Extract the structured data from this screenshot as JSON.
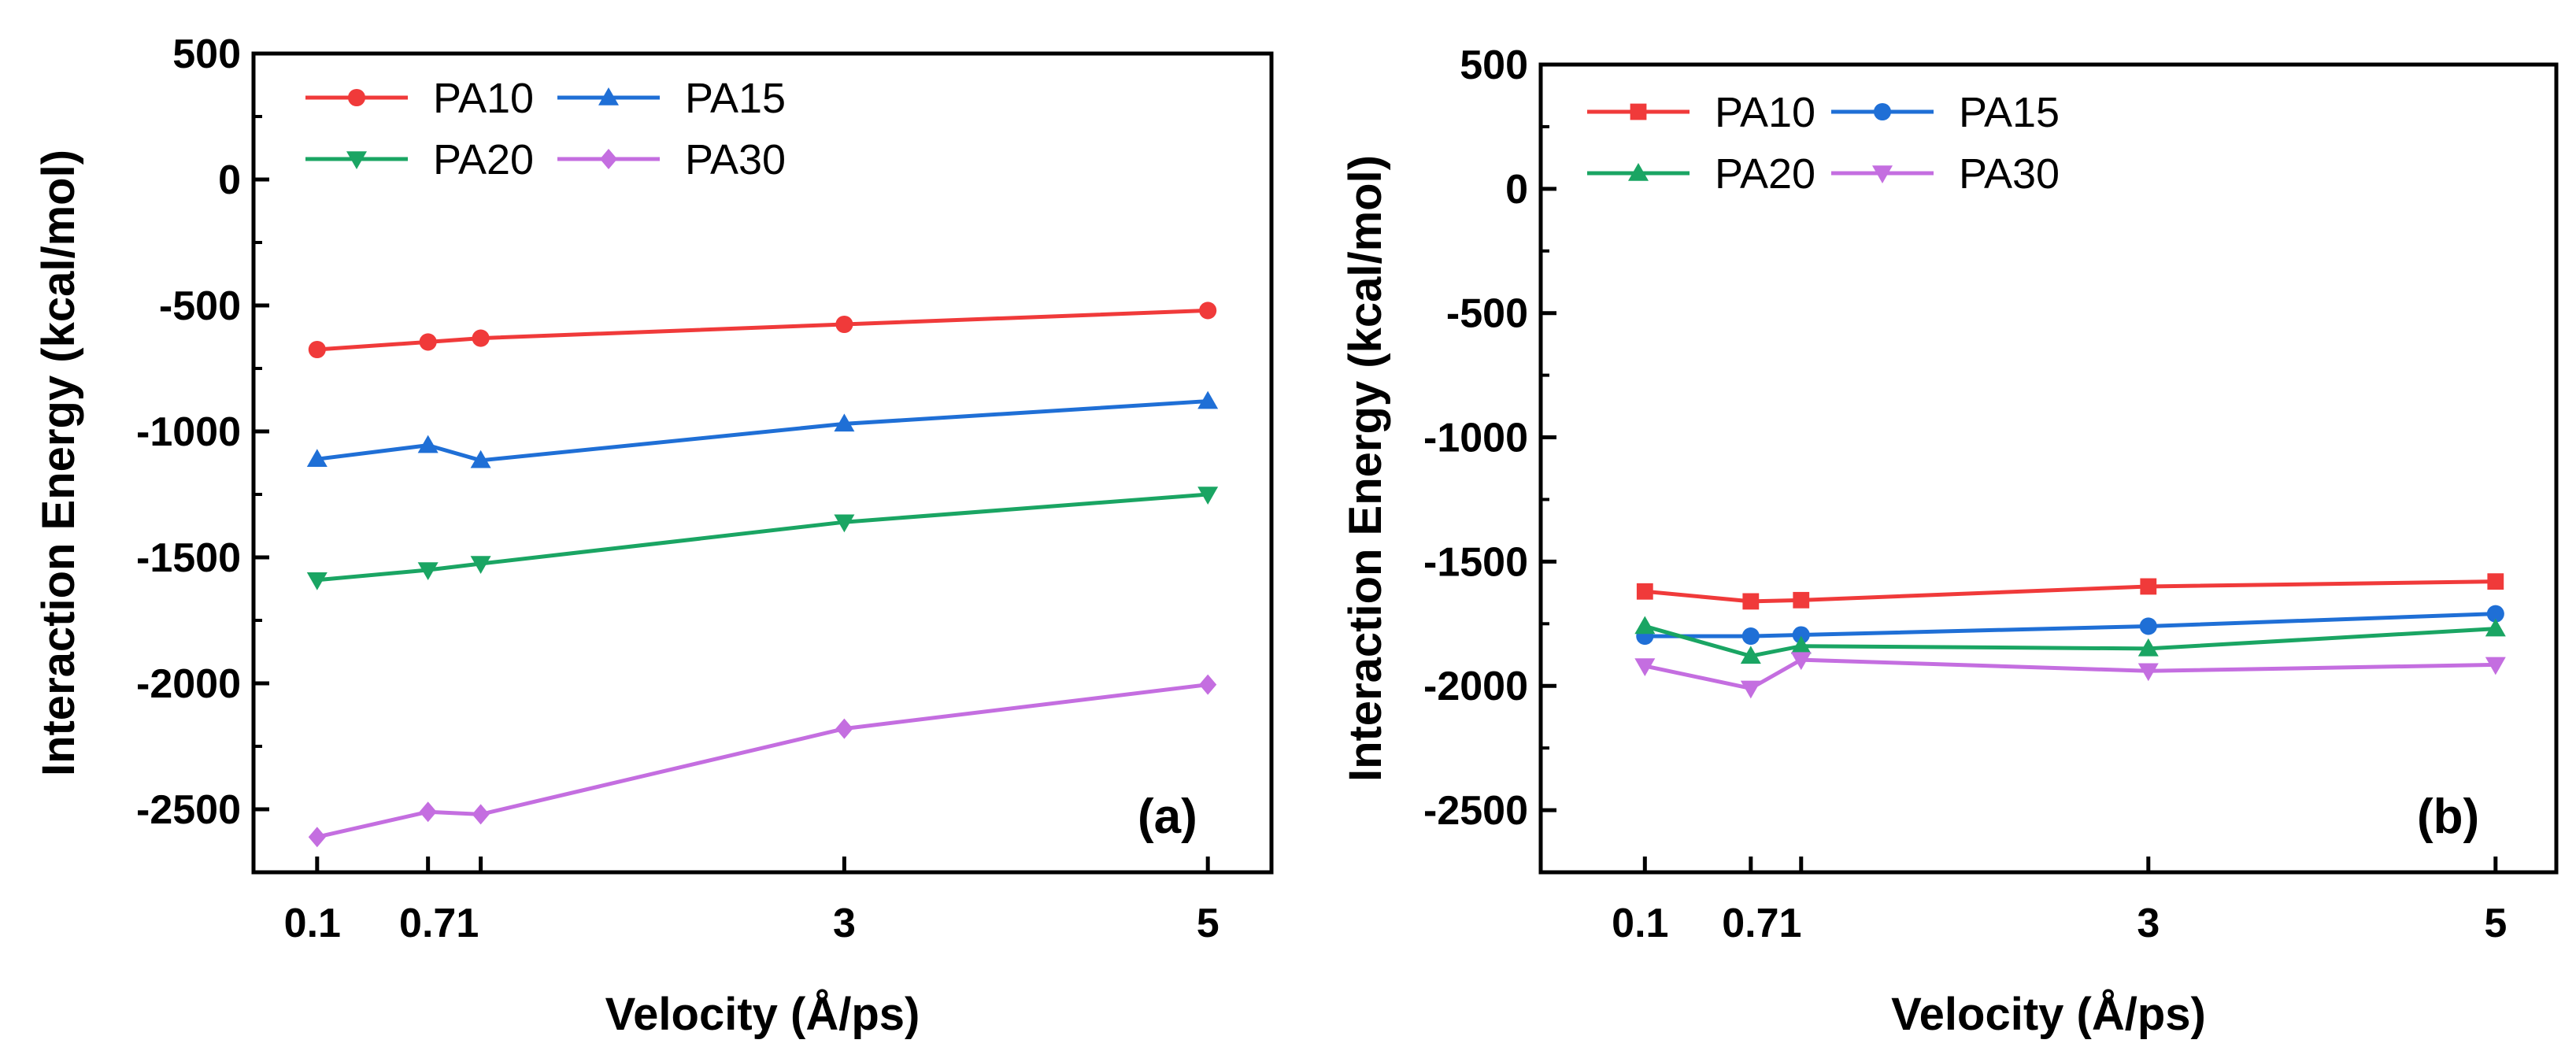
{
  "chart_data": [
    {
      "type": "line",
      "panel_label": "(a)",
      "xlabel": "Velocity (Å/ps)",
      "ylabel": "Interaction Energy (kcal/mol)",
      "xlim": [
        -0.25,
        5.35
      ],
      "ylim": [
        -2750,
        500
      ],
      "x_ticks": [
        0.1,
        0.71,
        1,
        3,
        5
      ],
      "x_tick_labels": [
        "0.1",
        "0.71",
        "",
        "3",
        "5"
      ],
      "y_ticks": [
        500,
        0,
        -500,
        -1000,
        -1500,
        -2000,
        -2500
      ],
      "y_tick_labels": [
        "500",
        "0",
        "-500",
        "-1000",
        "-1500",
        "-2000",
        "-2500"
      ],
      "legend_position": "top-left",
      "x": [
        0.1,
        0.71,
        1,
        3,
        5
      ],
      "series": [
        {
          "name": "PA10",
          "color": "#f03a3a",
          "marker": "circle",
          "values": [
            -675,
            -645,
            -630,
            -575,
            -520
          ]
        },
        {
          "name": "PA15",
          "color": "#1f6fd6",
          "marker": "triangle-up",
          "values": [
            -1110,
            -1055,
            -1115,
            -970,
            -880
          ]
        },
        {
          "name": "PA20",
          "color": "#1aa563",
          "marker": "triangle-down",
          "values": [
            -1590,
            -1550,
            -1525,
            -1360,
            -1250
          ]
        },
        {
          "name": "PA30",
          "color": "#c46ee0",
          "marker": "diamond",
          "values": [
            -2610,
            -2510,
            -2520,
            -2180,
            -2005
          ]
        }
      ]
    },
    {
      "type": "line",
      "panel_label": "(b)",
      "xlabel": "Velocity (Å/ps)",
      "ylabel": "Interaction Energy (kcal/mol)",
      "xlim": [
        -0.5,
        5.35
      ],
      "ylim": [
        -2750,
        500
      ],
      "x_ticks": [
        0.1,
        0.71,
        1,
        3,
        5
      ],
      "x_tick_labels": [
        "0.1",
        "0.71",
        "",
        "3",
        "5"
      ],
      "y_ticks": [
        500,
        0,
        -500,
        -1000,
        -1500,
        -2000,
        -2500
      ],
      "y_tick_labels": [
        "500",
        "0",
        "-500",
        "-1000",
        "-1500",
        "-2000",
        "-2500"
      ],
      "legend_position": "top-left",
      "x": [
        0.1,
        0.71,
        1,
        3,
        5
      ],
      "series": [
        {
          "name": "PA10",
          "color": "#f03a3a",
          "marker": "square",
          "values": [
            -1620,
            -1660,
            -1655,
            -1600,
            -1580
          ]
        },
        {
          "name": "PA15",
          "color": "#1f6fd6",
          "marker": "circle",
          "values": [
            -1800,
            -1800,
            -1795,
            -1760,
            -1710
          ]
        },
        {
          "name": "PA20",
          "color": "#1aa563",
          "marker": "triangle-up",
          "values": [
            -1760,
            -1880,
            -1840,
            -1850,
            -1770
          ]
        },
        {
          "name": "PA30",
          "color": "#c46ee0",
          "marker": "triangle-down",
          "values": [
            -1920,
            -2010,
            -1895,
            -1940,
            -1915
          ]
        }
      ]
    }
  ]
}
